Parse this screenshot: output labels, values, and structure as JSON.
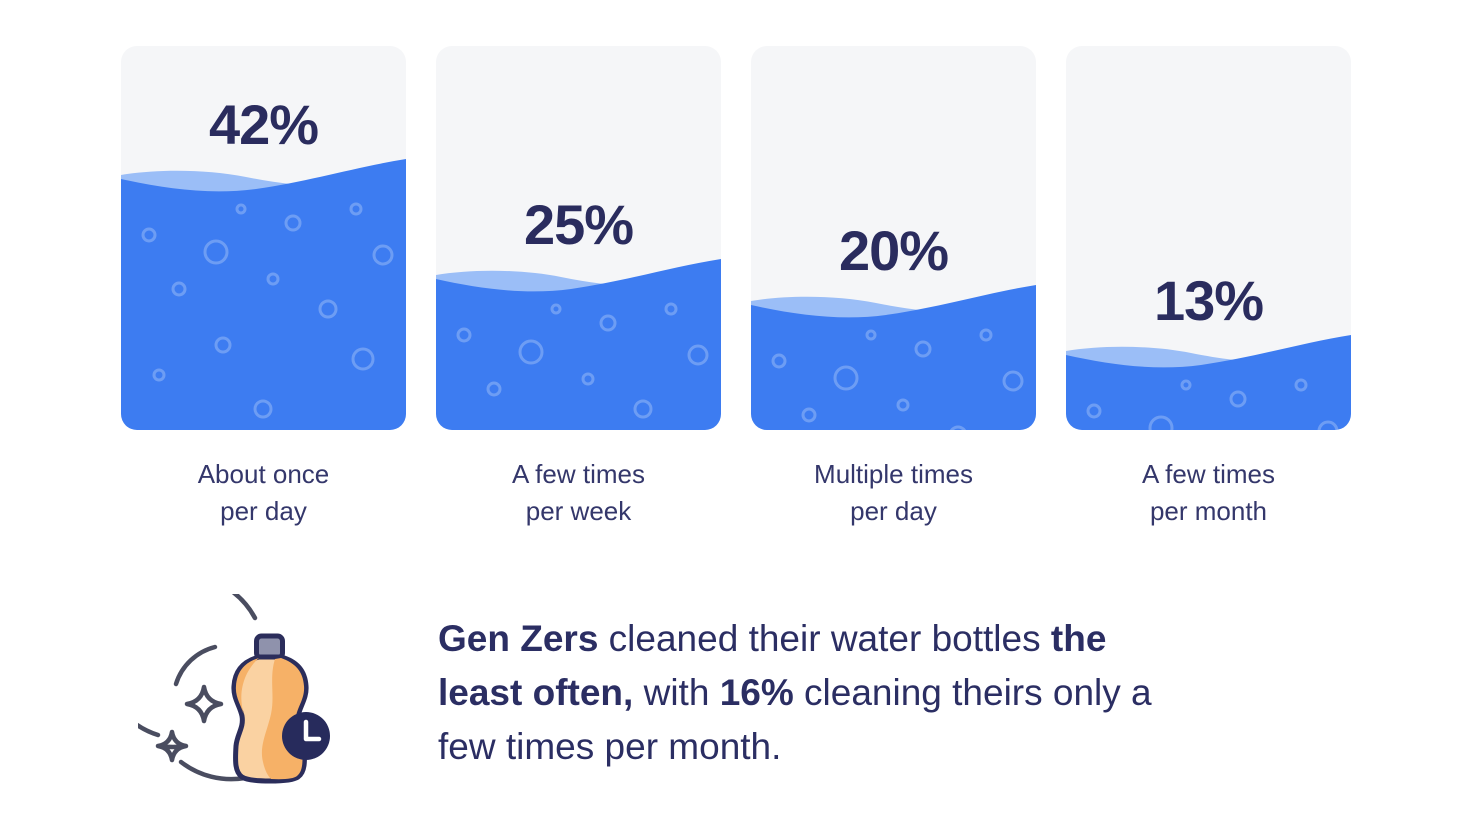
{
  "chart_data": {
    "type": "bar",
    "title": "",
    "categories": [
      "About once per day",
      "A few times per week",
      "Multiple times per day",
      "A few times per month"
    ],
    "values": [
      42,
      25,
      20,
      13
    ],
    "unit": "%",
    "annotation": "Gen Zers cleaned their water bottles the least often, with 16% cleaning theirs only a few times per month."
  },
  "cards": [
    {
      "percent": "42%",
      "value": 42,
      "fill_percent": 67,
      "label": [
        "About once",
        "per day"
      ]
    },
    {
      "percent": "25%",
      "value": 25,
      "fill_percent": 41,
      "label": [
        "A few times",
        "per week"
      ]
    },
    {
      "percent": "20%",
      "value": 20,
      "fill_percent": 34,
      "label": [
        "Multiple times",
        "per day"
      ]
    },
    {
      "percent": "13%",
      "value": 13,
      "fill_percent": 21,
      "label": [
        "A few times",
        "per month"
      ]
    }
  ],
  "summary": {
    "lines": [
      [
        {
          "text": "Gen Zers",
          "bold": true
        },
        {
          "text": " cleaned their water bottles ",
          "bold": false
        },
        {
          "text": "the",
          "bold": true
        }
      ],
      [
        {
          "text": "least often,",
          "bold": true
        },
        {
          "text": " with ",
          "bold": false
        },
        {
          "text": "16%",
          "bold": true
        },
        {
          "text": " cleaning theirs only a",
          "bold": false
        }
      ],
      [
        {
          "text": "few times per month.",
          "bold": false
        }
      ]
    ]
  },
  "icon": {
    "name": "bottle-cleaning-sparkle-clock-icon"
  },
  "colors": {
    "water_blue": "#3D7CF1",
    "water_light": "#9BBEF7",
    "navy": "#2A2C5E",
    "label_text": "#34376B",
    "summary_text": "#2B2E63",
    "card_bg": "#F5F6F8",
    "bottle_orange": "#F6B167",
    "bottle_highlight": "#FAD2A2",
    "cap_gray": "#8F92AC",
    "outline_navy": "#2B2D5B",
    "arc_gray": "#4A4D60",
    "bubble": "rgba(255,255,255,0.25)"
  }
}
